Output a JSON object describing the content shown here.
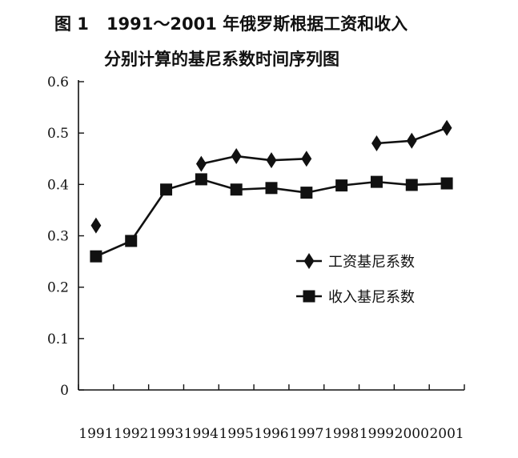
{
  "chart_data": {
    "type": "line",
    "title_line1_prefix": "图 1",
    "title_line1": "1991～2001 年俄罗斯根据工资和收入",
    "title_line2": "分别计算的基尼系数时间序列图",
    "categories": [
      "1991",
      "1992",
      "1993",
      "1994",
      "1995",
      "1996",
      "1997",
      "1998",
      "1999",
      "2000",
      "2001"
    ],
    "series": [
      {
        "name": "工资基尼系数",
        "marker": "diamond",
        "color": "#111111",
        "values": [
          0.32,
          null,
          null,
          0.44,
          0.455,
          0.447,
          0.45,
          null,
          0.48,
          0.485,
          0.51
        ]
      },
      {
        "name": "收入基尼系数",
        "marker": "square",
        "color": "#111111",
        "values": [
          0.26,
          0.29,
          0.39,
          0.41,
          0.39,
          0.393,
          0.384,
          0.398,
          0.405,
          0.399,
          0.402
        ]
      }
    ],
    "yticks": [
      "0",
      "0.1",
      "0.2",
      "0.3",
      "0.4",
      "0.5",
      "0.6"
    ],
    "ylim": [
      0,
      0.6
    ],
    "grid": false,
    "legend_position": "right-middle"
  }
}
